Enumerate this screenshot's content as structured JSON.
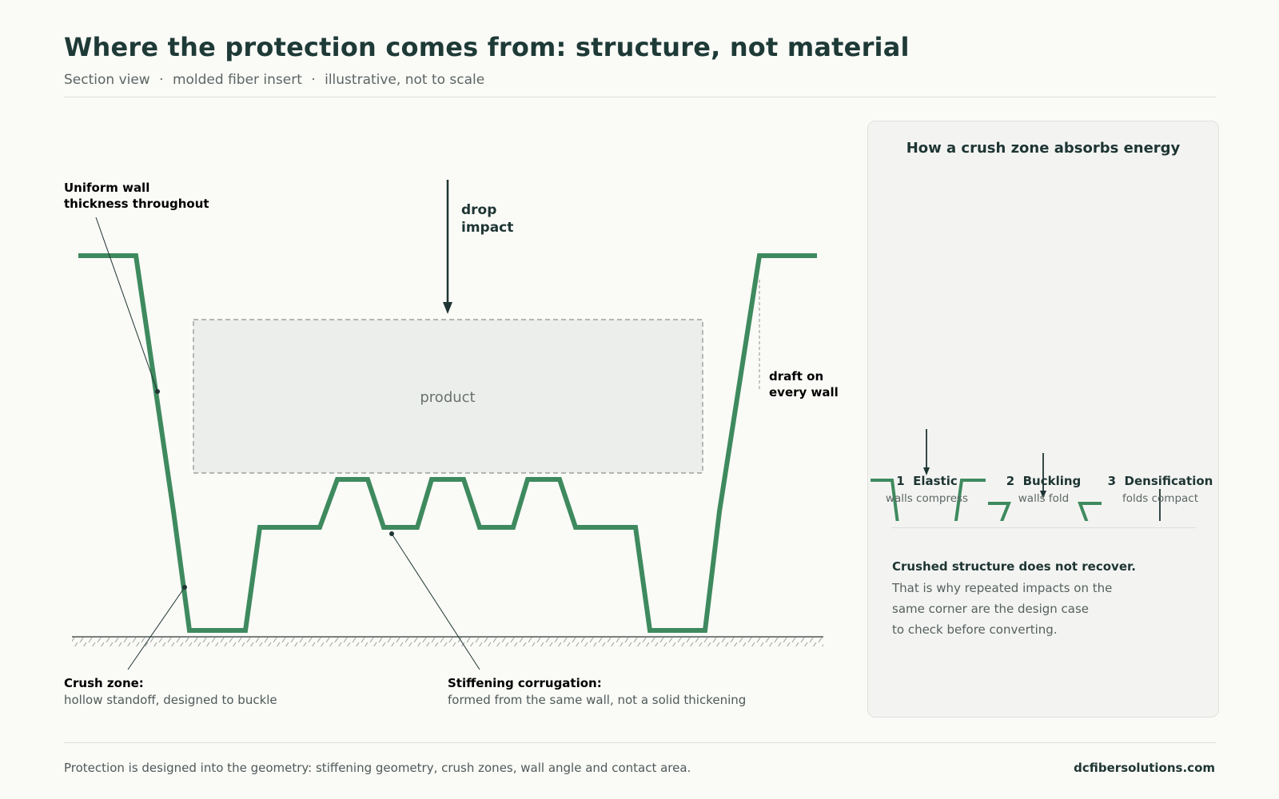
{
  "header": {
    "title": "Where the protection comes from: structure, not material",
    "subtitle_parts": [
      "Section view",
      "molded fiber insert",
      "illustrative, not to scale"
    ],
    "separator": "·"
  },
  "diagram": {
    "product_label": "product",
    "impact_label": [
      "drop",
      "impact"
    ],
    "callouts": {
      "wall": {
        "title_lines": [
          "Uniform wall",
          "thickness throughout"
        ]
      },
      "draft": {
        "title_lines": [
          "draft on",
          "every wall"
        ]
      },
      "crush": {
        "title": "Crush zone:",
        "desc": "hollow standoff, designed to buckle"
      },
      "stiffening": {
        "title": "Stiffening corrugation:",
        "desc": "formed from the same wall, not a solid thickening"
      }
    }
  },
  "panel": {
    "title": "How a crush zone absorbs energy",
    "stages": [
      {
        "number": "1",
        "name": "Elastic",
        "desc": "walls compress"
      },
      {
        "number": "2",
        "name": "Buckling",
        "desc": "walls fold"
      },
      {
        "number": "3",
        "name": "Densification",
        "desc": "folds compact"
      }
    ],
    "note_title": "Crushed structure does not recover.",
    "note_lines": [
      "That is why repeated impacts on the",
      "same corner are the design case",
      "to check before converting."
    ]
  },
  "footer": {
    "text": "Protection is designed into the geometry: stiffening geometry, crush zones, wall angle and contact area.",
    "site": "dcfibersolutions.com"
  },
  "colors": {
    "wall_green": "#3e8a5e",
    "ink": "#1e3533",
    "muted": "#56605e",
    "product_fill": "#eceeeb",
    "ground": "#7a807d"
  }
}
